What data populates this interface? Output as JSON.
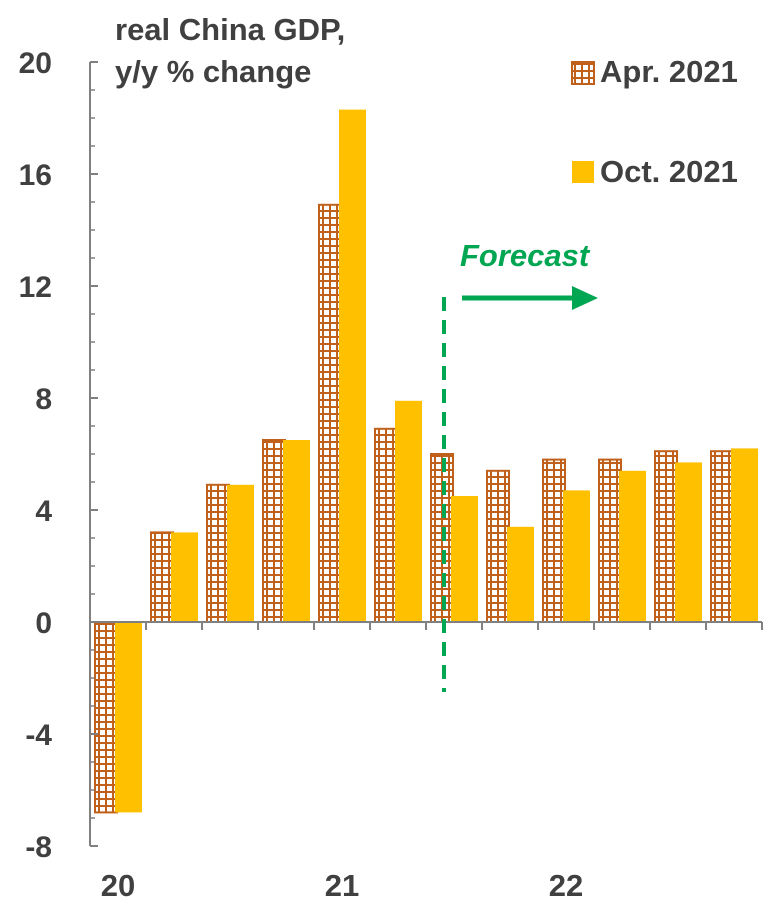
{
  "chart_data": {
    "type": "bar",
    "title": "real China GDP,",
    "ylabel": "y/y % change",
    "ylim": [
      -8,
      20
    ],
    "yticks": [
      -8,
      -4,
      0,
      4,
      8,
      12,
      16,
      20
    ],
    "xtick_labels": [
      "20",
      "21",
      "22"
    ],
    "categories": [
      "20Q1",
      "20Q2",
      "20Q3",
      "20Q4",
      "21Q1",
      "21Q2",
      "21Q3",
      "21Q4",
      "22Q1",
      "22Q2",
      "22Q3",
      "22Q4"
    ],
    "series": [
      {
        "name": "Apr. 2021",
        "values": [
          -6.8,
          3.2,
          4.9,
          6.5,
          14.9,
          6.9,
          6.0,
          5.4,
          5.8,
          5.8,
          6.1,
          6.1
        ]
      },
      {
        "name": "Oct. 2021",
        "values": [
          -6.8,
          3.2,
          4.9,
          6.5,
          18.3,
          7.9,
          4.5,
          3.4,
          4.7,
          5.4,
          5.7,
          6.2
        ]
      }
    ],
    "annotation": "Forecast",
    "legend_position": "top-right",
    "grid": false
  },
  "colors": {
    "apr_edge": "#c0601a",
    "apr_fill": "#ffffff",
    "apr_dot": "#c0601a",
    "oct_fill": "#ffc000",
    "forecast": "#00a651",
    "axis": "#808080",
    "text": "#404040"
  }
}
